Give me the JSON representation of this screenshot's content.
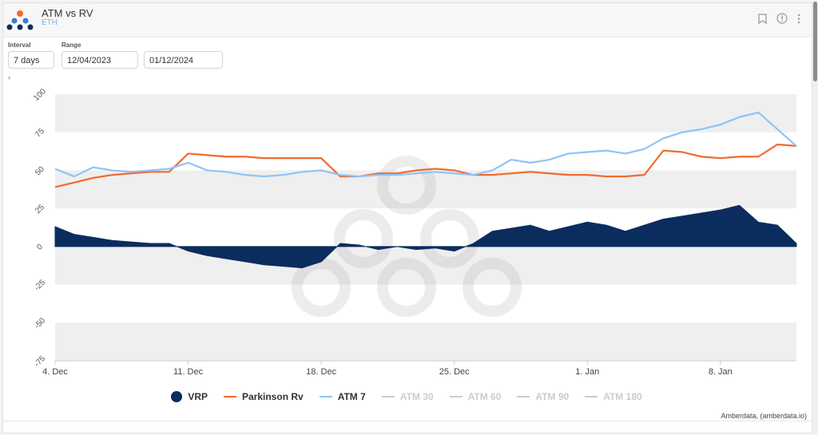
{
  "header": {
    "title": "ATM vs RV",
    "subtitle": "ETH"
  },
  "controls": {
    "interval_label": "Interval",
    "interval_value": "7 days",
    "range_label": "Range",
    "range_start": "12/04/2023",
    "range_end": "01/12/2024"
  },
  "credit": "Amberdata, (amberdata.io)",
  "colors": {
    "vrp": "#0b2d5e",
    "parkinson": "#f26a2e",
    "atm7": "#8ec3f7",
    "inactive": "#cccccc"
  },
  "chart_data": {
    "type": "line",
    "ylim": [
      -75,
      100
    ],
    "yticks": [
      "100",
      "75",
      "50",
      "25",
      "0",
      "-25",
      "-50",
      "-75"
    ],
    "xlim": [
      "2023-12-04",
      "2024-01-12"
    ],
    "xticks": [
      {
        "label": "4. Dec",
        "date": "2023-12-04"
      },
      {
        "label": "11. Dec",
        "date": "2023-12-11"
      },
      {
        "label": "18. Dec",
        "date": "2023-12-18"
      },
      {
        "label": "25. Dec",
        "date": "2023-12-25"
      },
      {
        "label": "1. Jan",
        "date": "2024-01-01"
      },
      {
        "label": "8. Jan",
        "date": "2024-01-08"
      }
    ],
    "x": [
      "2023-12-04",
      "2023-12-05",
      "2023-12-06",
      "2023-12-07",
      "2023-12-08",
      "2023-12-09",
      "2023-12-10",
      "2023-12-11",
      "2023-12-12",
      "2023-12-13",
      "2023-12-14",
      "2023-12-15",
      "2023-12-16",
      "2023-12-17",
      "2023-12-18",
      "2023-12-19",
      "2023-12-20",
      "2023-12-21",
      "2023-12-22",
      "2023-12-23",
      "2023-12-24",
      "2023-12-25",
      "2023-12-26",
      "2023-12-27",
      "2023-12-28",
      "2023-12-29",
      "2023-12-30",
      "2023-12-31",
      "2024-01-01",
      "2024-01-02",
      "2024-01-03",
      "2024-01-04",
      "2024-01-05",
      "2024-01-06",
      "2024-01-07",
      "2024-01-08",
      "2024-01-09",
      "2024-01-10",
      "2024-01-11",
      "2024-01-12"
    ],
    "series": [
      {
        "name": "VRP",
        "type": "area",
        "values": [
          13,
          8,
          6,
          4,
          3,
          2,
          2,
          -3,
          -6,
          -8,
          -10,
          -12,
          -13,
          -14,
          -10,
          2,
          1,
          -2,
          0,
          -2,
          -1,
          -3,
          2,
          10,
          12,
          14,
          10,
          13,
          16,
          14,
          10,
          14,
          18,
          20,
          22,
          24,
          27,
          16,
          14,
          2
        ]
      },
      {
        "name": "Parkinson Rv",
        "type": "line",
        "values": [
          39,
          42,
          45,
          47,
          48,
          49,
          49,
          61,
          60,
          59,
          59,
          58,
          58,
          58,
          58,
          46,
          46,
          48,
          48,
          50,
          51,
          50,
          47,
          47,
          48,
          49,
          48,
          47,
          47,
          46,
          46,
          47,
          63,
          62,
          59,
          58,
          59,
          59,
          67,
          66
        ]
      },
      {
        "name": "ATM 7",
        "type": "line",
        "values": [
          51,
          46,
          52,
          50,
          49,
          50,
          51,
          55,
          50,
          49,
          47,
          46,
          47,
          49,
          50,
          47,
          46,
          47,
          47,
          48,
          49,
          48,
          47,
          50,
          57,
          55,
          57,
          61,
          62,
          63,
          61,
          64,
          71,
          75,
          77,
          80,
          85,
          88,
          77,
          66
        ]
      }
    ],
    "legend": [
      {
        "name": "VRP",
        "active": true
      },
      {
        "name": "Parkinson Rv",
        "active": true
      },
      {
        "name": "ATM 7",
        "active": true
      },
      {
        "name": "ATM 30",
        "active": false
      },
      {
        "name": "ATM 60",
        "active": false
      },
      {
        "name": "ATM 90",
        "active": false
      },
      {
        "name": "ATM 180",
        "active": false
      }
    ],
    "legend_position": "bottom",
    "grid": true
  }
}
